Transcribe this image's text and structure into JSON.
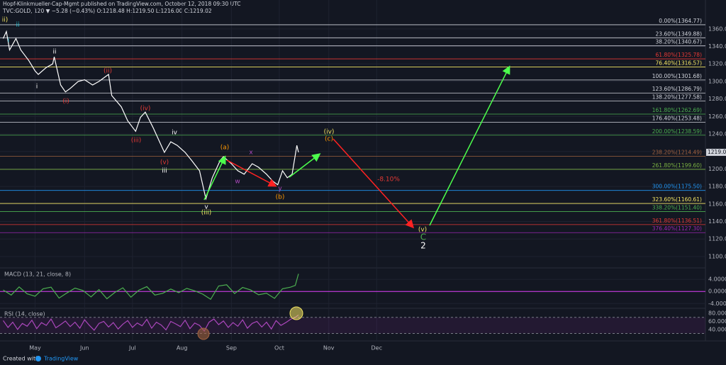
{
  "header": {
    "line1": "Hopf-Klinkmueller-Cap-Mgmt published on TradingView.com, October 12, 2018 09:30 UTC",
    "line2": "TVC:GOLD, 120 ▼ −5.28 (−0.43%) O:1218.48 H:1219.50 L:1216.00 C:1219.02"
  },
  "footer": {
    "created": "Created with",
    "brand": "TradingView"
  },
  "chart_data": [
    {
      "type": "line",
      "name": "price",
      "color": "#ffffff",
      "x": [
        101,
        103,
        105,
        109,
        112,
        117,
        121,
        123,
        128,
        132,
        133,
        137,
        140,
        143,
        148,
        152,
        157,
        161,
        167,
        169,
        175,
        179,
        184,
        187,
        190,
        195,
        199,
        202,
        206,
        210,
        215,
        219,
        224,
        228,
        232,
        237,
        239,
        244,
        248,
        252,
        257,
        261,
        266,
        270,
        273,
        276,
        279,
        282,
        285,
        286
      ],
      "values": [
        1349,
        1357,
        1336,
        1349,
        1336,
        1324,
        1312,
        1308,
        1316,
        1320,
        1328,
        1296,
        1288,
        1292,
        1300,
        1302,
        1296,
        1300,
        1308,
        1284,
        1271,
        1255,
        1243,
        1259,
        1265,
        1247,
        1231,
        1219,
        1231,
        1227,
        1219,
        1210,
        1198,
        1166,
        1190,
        1210,
        1214,
        1206,
        1198,
        1194,
        1206,
        1202,
        1194,
        1186,
        1182,
        1198,
        1190,
        1194,
        1227,
        1219.02
      ],
      "xlim": [
        99,
        541
      ],
      "xticks": [
        {
          "value": 121,
          "label": "May"
        },
        {
          "value": 152,
          "label": "Jun"
        },
        {
          "value": 182,
          "label": "Jul"
        },
        {
          "value": 213,
          "label": "Aug"
        },
        {
          "value": 244,
          "label": "Sep"
        },
        {
          "value": 274,
          "label": "Oct"
        },
        {
          "value": 305,
          "label": "Nov"
        },
        {
          "value": 335,
          "label": "Dec"
        }
      ],
      "ylim": [
        1087,
        1389
      ],
      "yticks": [
        {
          "value": 1100,
          "label": "1100.00"
        },
        {
          "value": 1120,
          "label": "1120.00"
        },
        {
          "value": 1140,
          "label": "1140.00"
        },
        {
          "value": 1160,
          "label": "1160.00"
        },
        {
          "value": 1180,
          "label": "1180.00"
        },
        {
          "value": 1200,
          "label": "1200.00"
        },
        {
          "value": 1220,
          "label": "1220.00"
        },
        {
          "value": 1240,
          "label": "1240.00"
        },
        {
          "value": 1260,
          "label": "1260.00"
        },
        {
          "value": 1280,
          "label": "1280.00"
        },
        {
          "value": 1300,
          "label": "1300.00"
        },
        {
          "value": 1320,
          "label": "1320.00"
        },
        {
          "value": 1340,
          "label": "1340.00"
        },
        {
          "value": 1360,
          "label": "1360.00"
        }
      ],
      "grid": true,
      "fib_levels": [
        {
          "value": 1364.77,
          "label": "0.00%(1364.77)",
          "color": "#d1d4dc"
        },
        {
          "value": 1349.88,
          "label": "23.60%(1349.88)",
          "color": "#d1d4dc"
        },
        {
          "value": 1340.67,
          "label": "38.20%(1340.67)",
          "color": "#d1d4dc"
        },
        {
          "value": 1325.78,
          "label": "61.80%(1325.78)",
          "color": "#e53935"
        },
        {
          "value": 1316.57,
          "label": "76.40%(1316.57)",
          "color": "#f5e663"
        },
        {
          "value": 1301.68,
          "label": "100.00%(1301.68)",
          "color": "#d1d4dc"
        },
        {
          "value": 1286.79,
          "label": "123.60%(1286.79)",
          "color": "#d1d4dc"
        },
        {
          "value": 1277.58,
          "label": "138.20%(1277.58)",
          "color": "#d1d4dc"
        },
        {
          "value": 1262.69,
          "label": "161.80%(1262.69)",
          "color": "#4caf50"
        },
        {
          "value": 1253.48,
          "label": "176.40%(1253.48)",
          "color": "#d1d4dc"
        },
        {
          "value": 1238.59,
          "label": "200.00%(1238.59)",
          "color": "#4caf50"
        },
        {
          "value": 1214.49,
          "label": "238.20%(1214.49)",
          "color": "#a1623f"
        },
        {
          "value": 1199.6,
          "label": "261.80%(1199.60)",
          "color": "#7cb342"
        },
        {
          "value": 1175.5,
          "label": "300.00%(1175.50)",
          "color": "#2196f3"
        },
        {
          "value": 1160.61,
          "label": "323.60%(1160.61)",
          "color": "#f5e663"
        },
        {
          "value": 1151.4,
          "label": "338.20%(1151.40)",
          "color": "#4caf50"
        },
        {
          "value": 1136.51,
          "label": "361.80%(1136.51)",
          "color": "#e53935"
        },
        {
          "value": 1127.3,
          "label": "376.40%(1127.30)",
          "color": "#9c27b0"
        }
      ],
      "annotations": [
        {
          "text": "ii)",
          "color": "#f5e663"
        },
        {
          "text": "ii",
          "color": "#26c6da"
        },
        {
          "text": "i",
          "color": "#26c6da"
        },
        {
          "text": "ii",
          "color": "#ffffff"
        },
        {
          "text": "i",
          "color": "#ffffff"
        },
        {
          "text": "(ii)",
          "color": "#e53935"
        },
        {
          "text": "(i)",
          "color": "#e53935"
        },
        {
          "text": "(iv)",
          "color": "#e53935"
        },
        {
          "text": "(iii)",
          "color": "#e53935"
        },
        {
          "text": "(v)",
          "color": "#e53935"
        },
        {
          "text": "iv",
          "color": "#ffffff"
        },
        {
          "text": "iii",
          "color": "#ffffff"
        },
        {
          "text": "v",
          "color": "#ffffff"
        },
        {
          "text": "(iii)",
          "color": "#f5e663"
        },
        {
          "text": "(a)",
          "color": "#ff9800"
        },
        {
          "text": "x",
          "color": "#ab47bc"
        },
        {
          "text": "w",
          "color": "#ab47bc"
        },
        {
          "text": "y",
          "color": "#ab47bc"
        },
        {
          "text": "(b)",
          "color": "#ff9800"
        },
        {
          "text": "(iv)",
          "color": "#f5e663"
        },
        {
          "text": "(c)",
          "color": "#ff9800"
        },
        {
          "text": "-8.10%",
          "color": "#e53935"
        },
        {
          "text": "(v)",
          "color": "#f5e663"
        },
        {
          "text": "C",
          "color": "#4caf50"
        },
        {
          "text": "2",
          "color": "#ffffff"
        }
      ]
    },
    {
      "type": "line",
      "name": "MACD (13, 21, close, 8)",
      "color": "#4caf50",
      "zero_color": "#e040fb",
      "x": [
        101,
        106,
        111,
        116,
        121,
        126,
        131,
        136,
        141,
        146,
        151,
        156,
        161,
        166,
        171,
        176,
        181,
        186,
        191,
        196,
        201,
        206,
        211,
        216,
        221,
        226,
        231,
        236,
        241,
        246,
        251,
        256,
        261,
        266,
        271,
        276,
        281,
        284,
        286
      ],
      "values": [
        0.5,
        -1.2,
        1.5,
        -0.8,
        -1.6,
        0.9,
        1.4,
        -2.2,
        -0.5,
        1.1,
        0.3,
        -1.8,
        0.6,
        -2.4,
        -0.3,
        1.2,
        -1.9,
        0.4,
        1.6,
        -1.2,
        -0.6,
        0.8,
        -0.4,
        1.0,
        0.2,
        -0.9,
        -2.6,
        1.8,
        2.2,
        -0.7,
        1.3,
        0.5,
        -1.1,
        -0.6,
        -2.3,
        0.9,
        1.4,
        2.0,
        5.8
      ],
      "ylim": [
        -5.1,
        7.3
      ],
      "yticks": [
        {
          "value": -4,
          "label": "-4.0000"
        },
        {
          "value": 0,
          "label": "0.0000"
        },
        {
          "value": 4,
          "label": "4.0000"
        }
      ]
    },
    {
      "type": "line",
      "name": "RSI (14, close)",
      "color": "#ab47bc",
      "x": [
        101,
        104,
        107,
        110,
        113,
        116,
        119,
        122,
        125,
        128,
        131,
        134,
        137,
        140,
        143,
        146,
        149,
        152,
        155,
        158,
        161,
        164,
        167,
        170,
        173,
        176,
        179,
        182,
        185,
        188,
        191,
        194,
        197,
        200,
        203,
        206,
        209,
        212,
        215,
        218,
        221,
        224,
        227,
        230,
        233,
        236,
        239,
        242,
        245,
        248,
        251,
        254,
        257,
        260,
        263,
        266,
        269,
        272,
        275,
        278,
        281,
        284,
        286
      ],
      "values": [
        62,
        45,
        58,
        40,
        55,
        48,
        63,
        42,
        57,
        50,
        66,
        44,
        52,
        61,
        47,
        58,
        43,
        64,
        50,
        38,
        55,
        60,
        46,
        57,
        41,
        53,
        62,
        45,
        56,
        49,
        65,
        43,
        58,
        51,
        39,
        60,
        54,
        47,
        63,
        42,
        56,
        50,
        36,
        58,
        66,
        52,
        61,
        45,
        57,
        48,
        64,
        43,
        55,
        60,
        46,
        58,
        41,
        62,
        50,
        57,
        65,
        70,
        76
      ],
      "ylim": [
        15,
        89
      ],
      "band": [
        30,
        70
      ],
      "yticks": [
        {
          "value": 40,
          "label": "40.0000"
        },
        {
          "value": 60,
          "label": "60.0000"
        },
        {
          "value": 80,
          "label": "80.0000"
        }
      ]
    }
  ]
}
